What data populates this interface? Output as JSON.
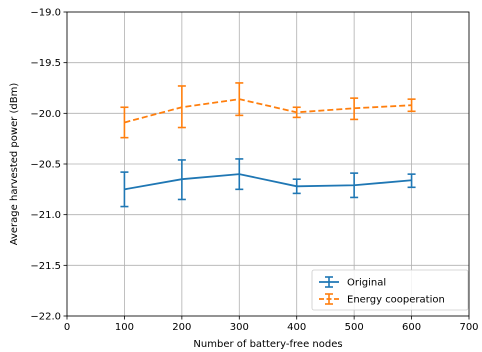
{
  "chart_data": {
    "type": "line",
    "xlabel": "Number of battery-free nodes",
    "ylabel": "Average harvested power (dBm)",
    "xlim": [
      0,
      700
    ],
    "ylim": [
      -22.0,
      -19.0
    ],
    "xticks": [
      0,
      100,
      200,
      300,
      400,
      500,
      600,
      700
    ],
    "yticks": [
      -19.0,
      -19.5,
      -20.0,
      -20.5,
      -21.0,
      -21.5,
      -22.0
    ],
    "xtick_labels": [
      "0",
      "100",
      "200",
      "300",
      "400",
      "500",
      "600",
      "700"
    ],
    "ytick_labels": [
      "−19.0",
      "−19.5",
      "−20.0",
      "−20.5",
      "−21.0",
      "−21.5",
      "−22.0"
    ],
    "grid": true,
    "legend_position": "lower-right",
    "x": [
      100,
      200,
      300,
      400,
      500,
      600
    ],
    "series": [
      {
        "name": "Original",
        "color": "#1f77b4",
        "dash": "solid",
        "values": [
          -20.75,
          -20.65,
          -20.6,
          -20.72,
          -20.71,
          -20.66
        ],
        "err_low": [
          -20.92,
          -20.85,
          -20.75,
          -20.79,
          -20.83,
          -20.73
        ],
        "err_high": [
          -20.58,
          -20.46,
          -20.45,
          -20.65,
          -20.59,
          -20.6
        ]
      },
      {
        "name": "Energy cooperation",
        "color": "#ff7f0e",
        "dash": "dashed",
        "values": [
          -20.09,
          -19.94,
          -19.86,
          -19.99,
          -19.95,
          -19.92
        ],
        "err_low": [
          -20.24,
          -20.14,
          -20.02,
          -20.04,
          -20.06,
          -19.98
        ],
        "err_high": [
          -19.94,
          -19.73,
          -19.7,
          -19.94,
          -19.85,
          -19.86
        ]
      }
    ]
  }
}
